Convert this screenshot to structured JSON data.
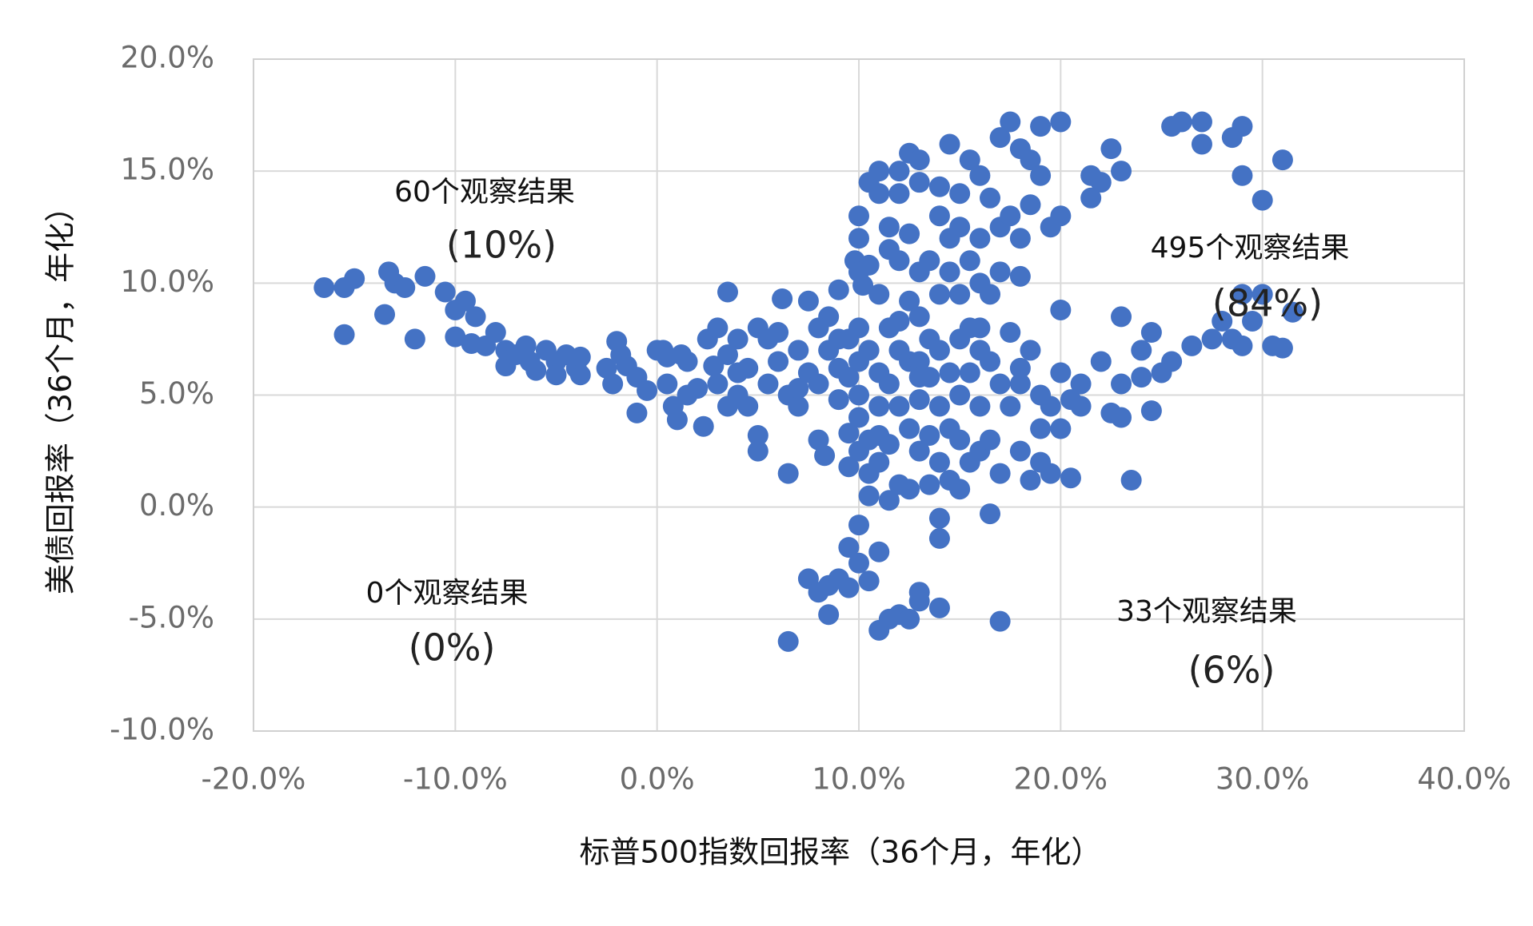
{
  "chart_data": {
    "type": "scatter",
    "x_label": "标普500指数回报率（36个月，年化）",
    "y_label": "美债回报率（36个月，年化）",
    "color": "#4472c4",
    "grid": true,
    "xlim": [
      -20,
      40
    ],
    "xticks": [
      {
        "value": -20,
        "label": "-20.0%"
      },
      {
        "value": -10,
        "label": "-10.0%"
      },
      {
        "value": 0,
        "label": "0.0%"
      },
      {
        "value": 10,
        "label": "10.0%"
      },
      {
        "value": 20,
        "label": "20.0%"
      },
      {
        "value": 30,
        "label": "30.0%"
      },
      {
        "value": 40,
        "label": "40.0%"
      }
    ],
    "ylim": [
      -10,
      20
    ],
    "yticks": [
      {
        "value": -10,
        "label": "-10.0%"
      },
      {
        "value": -5,
        "label": "-5.0%"
      },
      {
        "value": 0,
        "label": "0.0%"
      },
      {
        "value": 5,
        "label": "5.0%"
      },
      {
        "value": 10,
        "label": "10.0%"
      },
      {
        "value": 15,
        "label": "15.0%"
      },
      {
        "value": 20,
        "label": "20.0%"
      }
    ],
    "annotations": [
      "60个观察结果",
      "(10%)",
      "495个观察结果",
      "(84%)",
      "0个观察结果",
      "(0%)",
      "33个观察结果",
      "(6%)"
    ],
    "x": [
      -16.5,
      -15.5,
      -15,
      -15.5,
      -13.3,
      -13,
      -12.5,
      -13.5,
      -11.5,
      -12,
      -10.5,
      -10,
      -9.5,
      -9,
      -10,
      -9.2,
      -8.5,
      -8,
      -7.5,
      -7.5,
      -7,
      -6.5,
      -6.3,
      -6,
      -5.5,
      -5,
      -5,
      -4.5,
      -4,
      -3.8,
      -3.8,
      -2.5,
      -2.2,
      -2,
      -1.8,
      -1.5,
      -1,
      -1,
      -0.5,
      0,
      0.5,
      0.5,
      0.8,
      1,
      1.2,
      1.5,
      2,
      2.3,
      2.5,
      3,
      3,
      3.5,
      3.5,
      4,
      4,
      4.5,
      4.5,
      5,
      5,
      5,
      5.5,
      6,
      6,
      6.2,
      6.5,
      6.5,
      7,
      7,
      7.5,
      7.5,
      8,
      8,
      8.3,
      8.5,
      8.5,
      9,
      9,
      9,
      9.5,
      9.5,
      9.5,
      9.5,
      9.8,
      10,
      10,
      10,
      10,
      10,
      10,
      10,
      10,
      10.2,
      10.5,
      10.5,
      10.5,
      10.5,
      10.5,
      10.5,
      11,
      11,
      11,
      11,
      11,
      11,
      11,
      11.5,
      11.5,
      11.5,
      11.5,
      11.5,
      11.5,
      12,
      12,
      12,
      12,
      12,
      12,
      12.5,
      12.5,
      12.5,
      12.5,
      12.5,
      12.5,
      13,
      13,
      13,
      13,
      13,
      13,
      13,
      13.5,
      13.5,
      13.5,
      13.5,
      13.5,
      14,
      14,
      14,
      14,
      14,
      14,
      14,
      14,
      14.5,
      14.5,
      14.5,
      14.5,
      14.5,
      14.5,
      15,
      15,
      15,
      15,
      15,
      15,
      15,
      15.5,
      15.5,
      15.5,
      15.5,
      15.5,
      16,
      16,
      16,
      16,
      16,
      16,
      16.5,
      16.5,
      16.5,
      16.5,
      16.5,
      17,
      17,
      17,
      17,
      17,
      17.5,
      17.5,
      17.5,
      17.5,
      18,
      18,
      18,
      18,
      18,
      18.5,
      18.5,
      18.5,
      18.5,
      19,
      19,
      19,
      19,
      19.5,
      19.5,
      19.5,
      20,
      20,
      20,
      20,
      20,
      20.5,
      21,
      21,
      21.5,
      21.5,
      22,
      22,
      22.5,
      22.5,
      23,
      23,
      23,
      23,
      23.5,
      24,
      24,
      24.5,
      24.5,
      25,
      25.5,
      25.5,
      26,
      26.5,
      27,
      27,
      27.5,
      28,
      28.5,
      28.5,
      29,
      29,
      29,
      29,
      29.5,
      30,
      30,
      30.5,
      31,
      31,
      31.5,
      6.5,
      7.5,
      8,
      8.5,
      8.5,
      9,
      9.5,
      9.5,
      10,
      10,
      10.5,
      11,
      11,
      11.5,
      12,
      12.5,
      13,
      13,
      14,
      17,
      0.3,
      1.5,
      2.8,
      3.5,
      4,
      5.5,
      7,
      8,
      9,
      12,
      13,
      16,
      18,
      19,
      20.5
    ],
    "values": [
      9.8,
      9.8,
      10.2,
      7.7,
      10.5,
      10,
      9.8,
      8.6,
      10.3,
      7.5,
      9.6,
      8.8,
      9.2,
      8.5,
      7.6,
      7.3,
      7.2,
      7.8,
      7,
      6.3,
      6.8,
      7.2,
      6.5,
      6.1,
      7,
      6.5,
      5.9,
      6.8,
      6.2,
      6.7,
      5.9,
      6.2,
      5.5,
      7.4,
      6.8,
      6.3,
      5.8,
      4.2,
      5.2,
      7,
      6.7,
      5.5,
      4.5,
      3.9,
      6.8,
      5,
      5.3,
      3.6,
      7.5,
      8,
      5.5,
      9.6,
      6.8,
      7.5,
      5,
      6.2,
      4.5,
      3.2,
      2.5,
      8,
      5.5,
      6.5,
      7.8,
      9.3,
      5,
      1.5,
      7,
      4.5,
      9.2,
      6,
      3,
      5.5,
      2.3,
      8.5,
      7,
      9.7,
      6.2,
      4.8,
      7.5,
      5.8,
      3.3,
      1.8,
      11,
      10.5,
      8,
      6.5,
      5,
      4,
      2.5,
      13,
      12,
      9.9,
      14.5,
      10.8,
      7,
      3,
      1.5,
      0.5,
      15,
      14,
      9.5,
      6,
      4.5,
      3.2,
      2,
      12.5,
      11.5,
      8,
      5.5,
      2.8,
      0.3,
      15,
      14,
      11,
      7,
      4.5,
      1,
      15.8,
      12.2,
      9.2,
      6.5,
      3.5,
      0.8,
      15.5,
      14.5,
      10.5,
      8.5,
      6.5,
      4.8,
      2.5,
      11,
      7.5,
      5.8,
      3.2,
      1,
      14.3,
      13,
      9.5,
      7,
      4.5,
      2,
      -0.5,
      -1.4,
      16.2,
      12,
      10.5,
      6,
      3.5,
      1.2,
      14,
      12.5,
      9.5,
      7.5,
      5,
      3,
      0.8,
      15.5,
      11,
      8,
      6,
      2,
      14.8,
      12,
      10,
      7,
      4.5,
      2.5,
      13.8,
      9.5,
      6.5,
      3,
      -0.3,
      16.5,
      12.5,
      10.5,
      5.5,
      1.5,
      17.2,
      13,
      7.8,
      4.5,
      16,
      12,
      10.3,
      5.5,
      2.5,
      15.5,
      13.5,
      7,
      1.2,
      14.8,
      17,
      5,
      3.5,
      12.5,
      4.5,
      1.5,
      13,
      6,
      3.5,
      8.8,
      17.2,
      1.3,
      5.5,
      4.5,
      14.8,
      13.8,
      6.5,
      14.5,
      16,
      4.2,
      8.5,
      5.5,
      4,
      15,
      1.2,
      7,
      5.8,
      7.8,
      4.3,
      6,
      6.5,
      17,
      17.2,
      7.2,
      17.2,
      16.2,
      7.5,
      8.3,
      16.5,
      7.5,
      17,
      14.8,
      9.5,
      7.2,
      8.3,
      13.7,
      9.5,
      7.2,
      15.5,
      7.1,
      8.7,
      -6,
      -3.2,
      -3.8,
      -4.8,
      -3.5,
      -3.2,
      -1.8,
      -3.6,
      -0.8,
      -2.5,
      -3.3,
      -5.5,
      -2,
      -5,
      -4.8,
      -5,
      -3.8,
      -4.2,
      -4.5,
      -5.1,
      7,
      6.5,
      6.3,
      4.5,
      6,
      7.5,
      5.3,
      8,
      7.5,
      8.3,
      5.8,
      8,
      6.2,
      2,
      4.8
    ]
  }
}
